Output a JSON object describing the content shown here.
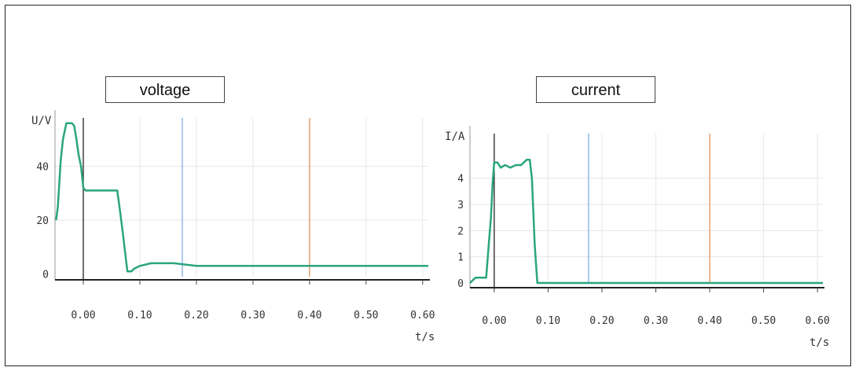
{
  "colors": {
    "signal": "#2aa57e",
    "blue_cursor": "#8fb8e8",
    "orange_cursor": "#e6a070",
    "grid": "#e6e6e6",
    "axis": "#222222"
  },
  "chart_data": [
    {
      "type": "line",
      "title": "voltage",
      "ylabel": "U/V",
      "xlabel": "t/s",
      "xlim": [
        -0.05,
        0.61
      ],
      "ylim": [
        -1,
        58
      ],
      "x_ticks": [
        0.0,
        0.1,
        0.2,
        0.3,
        0.4,
        0.5,
        0.6
      ],
      "x_tick_labels": [
        "0.00",
        "0.10",
        "0.20",
        "0.30",
        "0.40",
        "0.50",
        "0.60"
      ],
      "y_ticks": [
        0,
        20,
        40
      ],
      "y_tick_labels": [
        "0",
        "20",
        "40"
      ],
      "grid": true,
      "cursors": [
        {
          "x": 0.175,
          "color": "blue"
        },
        {
          "x": 0.4,
          "color": "orange"
        }
      ],
      "series": [
        {
          "x": [
            -0.048,
            -0.045,
            -0.04,
            -0.036,
            -0.03,
            -0.024,
            -0.02,
            -0.016,
            -0.012,
            -0.008,
            -0.004,
            0.0,
            0.004,
            0.02,
            0.04,
            0.06,
            0.064,
            0.07,
            0.075,
            0.078,
            0.085,
            0.09,
            0.1,
            0.12,
            0.16,
            0.2,
            0.3,
            0.4,
            0.5,
            0.61
          ],
          "y": [
            20,
            25,
            42,
            50,
            56,
            56,
            56,
            55,
            50,
            44,
            40,
            32,
            31,
            31,
            31,
            31,
            25,
            15,
            6,
            1,
            1,
            2,
            3,
            4,
            4,
            3,
            3,
            3,
            3,
            3
          ]
        }
      ]
    },
    {
      "type": "line",
      "title": "current",
      "ylabel": "I/A",
      "xlabel": "t/s",
      "xlim": [
        -0.045,
        0.61
      ],
      "ylim": [
        0,
        5.7
      ],
      "x_ticks": [
        0.0,
        0.1,
        0.2,
        0.3,
        0.4,
        0.5,
        0.6
      ],
      "x_tick_labels": [
        "0.00",
        "0.10",
        "0.20",
        "0.30",
        "0.40",
        "0.50",
        "0.60"
      ],
      "y_ticks": [
        0,
        1,
        2,
        3,
        4
      ],
      "y_tick_labels": [
        "0",
        "1",
        "2",
        "3",
        "4"
      ],
      "grid": true,
      "cursors": [
        {
          "x": 0.175,
          "color": "blue"
        },
        {
          "x": 0.4,
          "color": "orange"
        }
      ],
      "series": [
        {
          "x": [
            -0.045,
            -0.04,
            -0.035,
            -0.03,
            -0.015,
            -0.01,
            -0.006,
            -0.003,
            0.0,
            0.006,
            0.012,
            0.02,
            0.03,
            0.04,
            0.05,
            0.06,
            0.066,
            0.07,
            0.072,
            0.075,
            0.08,
            0.1,
            0.2,
            0.3,
            0.4,
            0.5,
            0.61
          ],
          "y": [
            0,
            0.1,
            0.2,
            0.2,
            0.2,
            1.5,
            2.5,
            3.8,
            4.6,
            4.6,
            4.4,
            4.5,
            4.4,
            4.5,
            4.5,
            4.7,
            4.7,
            4.0,
            3.0,
            1.5,
            0.0,
            0.0,
            0.0,
            0.0,
            0.0,
            0.0,
            0.0
          ]
        }
      ]
    }
  ]
}
